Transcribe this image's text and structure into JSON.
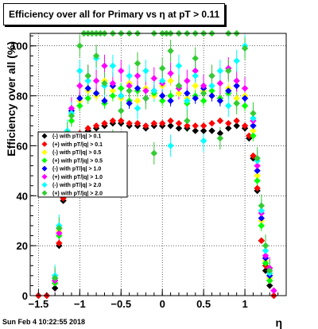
{
  "title": "Efficiency over all for Primary vs   η at pT > 0.11",
  "timestamp": "Sun Feb  4 10:22:55 2018",
  "chart_data": {
    "type": "scatter",
    "xlabel": "η",
    "ylabel": "Efficiency over all (%)",
    "xlim": [
      -1.6,
      1.5
    ],
    "ylim": [
      0,
      105
    ],
    "grid": true,
    "legend_position": "left-middle",
    "x_ticks": [
      -1.5,
      -1,
      -0.5,
      0,
      0.5,
      1
    ],
    "x_tick_labels": [
      "−1.5",
      "−1",
      "−0.5",
      "0",
      "0.5",
      "1"
    ],
    "y_ticks": [
      0,
      20,
      40,
      60,
      80,
      100
    ],
    "y_tick_labels": [
      "0",
      "20",
      "40",
      "60",
      "80",
      "100"
    ],
    "series": [
      {
        "name": "(-) with pT/|q| > 0.1",
        "color": "#000000",
        "x": [
          -1.5,
          -1.4,
          -1.3,
          -1.25,
          -1.2,
          -1.15,
          -1.1,
          -1.0,
          -0.9,
          -0.8,
          -0.7,
          -0.6,
          -0.5,
          -0.4,
          -0.3,
          -0.2,
          -0.1,
          0.0,
          0.1,
          0.2,
          0.3,
          0.4,
          0.5,
          0.6,
          0.7,
          0.8,
          0.9,
          1.0,
          1.05,
          1.1,
          1.15,
          1.2,
          1.25,
          1.3,
          1.35
        ],
        "y": [
          0,
          0,
          3,
          20,
          38,
          52,
          60,
          64,
          66,
          67,
          68,
          69,
          69,
          68,
          68,
          67,
          68,
          68,
          68,
          67,
          67,
          66,
          66,
          66,
          65,
          67,
          68,
          67,
          63,
          55,
          42,
          22,
          10,
          4,
          0
        ]
      },
      {
        "name": "(+) with pT/|q| > 0.1",
        "color": "#ff0000",
        "x": [
          -1.5,
          -1.4,
          -1.3,
          -1.25,
          -1.2,
          -1.15,
          -1.1,
          -1.0,
          -0.9,
          -0.8,
          -0.7,
          -0.6,
          -0.5,
          -0.4,
          -0.3,
          -0.2,
          -0.1,
          0.0,
          0.1,
          0.2,
          0.3,
          0.4,
          0.5,
          0.6,
          0.7,
          0.8,
          0.9,
          1.0,
          1.05,
          1.1,
          1.15,
          1.2,
          1.25,
          1.3,
          1.35
        ],
        "y": [
          0,
          0,
          5,
          21,
          39,
          54,
          62,
          65,
          67,
          68,
          69,
          70,
          70,
          69,
          69,
          68,
          69,
          69,
          70,
          69,
          68,
          68,
          68,
          69,
          70,
          69,
          70,
          68,
          64,
          56,
          43,
          22,
          12,
          6,
          0
        ]
      },
      {
        "name": "(-) with pT/|q| > 0.5",
        "color": "#ffff00",
        "x": [
          -1.3,
          -1.25,
          -1.2,
          -1.15,
          -1.1,
          -1.0,
          -0.9,
          -0.8,
          -0.7,
          -0.6,
          -0.5,
          -0.4,
          -0.3,
          -0.2,
          -0.1,
          0.0,
          0.1,
          0.2,
          0.3,
          0.4,
          0.5,
          0.6,
          0.7,
          0.8,
          0.9,
          1.0,
          1.1,
          1.15,
          1.2,
          1.25,
          1.3
        ],
        "y": [
          6,
          26,
          45,
          62,
          72,
          78,
          82,
          80,
          86,
          82,
          79,
          85,
          78,
          83,
          80,
          84,
          86,
          81,
          79,
          84,
          82,
          80,
          85,
          83,
          79,
          80,
          66,
          48,
          30,
          14,
          7
        ]
      },
      {
        "name": "(+) with pT/|q| > 0.5",
        "color": "#00ff00",
        "x": [
          -1.3,
          -1.25,
          -1.2,
          -1.15,
          -1.1,
          -1.0,
          -0.9,
          -0.8,
          -0.7,
          -0.6,
          -0.5,
          -0.4,
          -0.3,
          -0.2,
          -0.1,
          0.0,
          0.1,
          0.2,
          0.3,
          0.4,
          0.5,
          0.6,
          0.7,
          0.8,
          0.9,
          1.0,
          1.1,
          1.15,
          1.2,
          1.25,
          1.3
        ],
        "y": [
          5,
          24,
          44,
          60,
          70,
          76,
          79,
          81,
          77,
          80,
          83,
          78,
          82,
          79,
          81,
          78,
          80,
          83,
          77,
          80,
          78,
          82,
          79,
          81,
          77,
          76,
          64,
          46,
          28,
          13,
          6
        ]
      },
      {
        "name": "(-) with pT/|q| > 1.0",
        "color": "#0000ff",
        "x": [
          -1.3,
          -1.25,
          -1.2,
          -1.15,
          -1.1,
          -1.0,
          -0.9,
          -0.8,
          -0.7,
          -0.6,
          -0.5,
          -0.4,
          -0.3,
          -0.2,
          -0.1,
          0.0,
          0.1,
          0.2,
          0.3,
          0.4,
          0.5,
          0.6,
          0.7,
          0.8,
          0.9,
          1.0,
          1.1,
          1.15,
          1.2,
          1.25,
          1.3
        ],
        "y": [
          7,
          27,
          47,
          64,
          74,
          79,
          83,
          81,
          78,
          84,
          80,
          77,
          83,
          79,
          82,
          80,
          78,
          84,
          81,
          79,
          83,
          80,
          78,
          82,
          84,
          79,
          68,
          50,
          31,
          15,
          8
        ]
      },
      {
        "name": "(+) with pT/|q| > 1.0",
        "color": "#ff00ff",
        "x": [
          -1.3,
          -1.25,
          -1.2,
          -1.15,
          -1.1,
          -1.0,
          -0.9,
          -0.8,
          -0.7,
          -0.6,
          -0.5,
          -0.4,
          -0.3,
          -0.2,
          -0.1,
          0.0,
          0.1,
          0.2,
          0.3,
          0.4,
          0.5,
          0.6,
          0.7,
          0.8,
          0.9,
          1.0,
          1.1,
          1.15,
          1.2,
          1.25,
          1.3,
          1.35
        ],
        "y": [
          6,
          25,
          46,
          63,
          75,
          84,
          88,
          86,
          92,
          85,
          90,
          84,
          88,
          82,
          87,
          85,
          89,
          83,
          86,
          90,
          84,
          88,
          85,
          91,
          86,
          83,
          70,
          52,
          33,
          16,
          11,
          2
        ]
      },
      {
        "name": "(-) with pT/|q| > 2.0",
        "color": "#00ffff",
        "x": [
          -1.3,
          -1.25,
          -1.2,
          -1.15,
          -1.1,
          -1.0,
          -0.9,
          -0.8,
          -0.7,
          -0.6,
          -0.5,
          -0.4,
          -0.3,
          -0.2,
          -0.1,
          0.0,
          0.1,
          0.2,
          0.3,
          0.4,
          0.5,
          0.6,
          0.7,
          0.8,
          0.9,
          1.0,
          1.1,
          1.15,
          1.2,
          1.25,
          1.3
        ],
        "y": [
          8,
          28,
          48,
          66,
          73,
          90,
          86,
          95,
          84,
          92,
          80,
          88,
          75,
          90,
          82,
          86,
          60,
          92,
          78,
          88,
          62,
          84,
          90,
          76,
          94,
          100,
          71,
          54,
          34,
          18,
          9
        ]
      },
      {
        "name": "(+) with pT/|q| > 2.0",
        "color": "#33cc33",
        "x": [
          -1.3,
          -1.25,
          -1.2,
          -1.15,
          -1.1,
          -1.0,
          -0.9,
          -0.8,
          -0.7,
          -0.6,
          -0.5,
          -0.4,
          -0.3,
          -0.2,
          -0.1,
          0.0,
          0.1,
          0.2,
          0.3,
          0.4,
          0.5,
          0.6,
          0.7,
          0.8,
          0.9,
          1.0,
          1.1,
          1.15,
          1.2,
          1.25,
          1.3
        ],
        "y": [
          7,
          27,
          49,
          65,
          72,
          100,
          88,
          96,
          85,
          62,
          74,
          82,
          93,
          79,
          57,
          91,
          98,
          84,
          70,
          95,
          81,
          88,
          63,
          90,
          77,
          99,
          73,
          55,
          36,
          20,
          10
        ]
      },
      {
        "name": "",
        "color": "#33cc33",
        "x": [
          -0.95,
          -0.9,
          -0.85,
          -0.8,
          -0.75,
          -0.7,
          -0.6,
          -0.5,
          -0.4,
          -0.3,
          -0.1,
          0.0,
          0.05,
          0.1,
          0.2,
          0.3,
          0.4,
          0.5,
          0.6,
          0.8,
          0.9
        ],
        "y": [
          105,
          105,
          105,
          105,
          105,
          105,
          105,
          105,
          105,
          105,
          105,
          105,
          105,
          105,
          105,
          105,
          105,
          105,
          105,
          105,
          105
        ]
      }
    ]
  }
}
